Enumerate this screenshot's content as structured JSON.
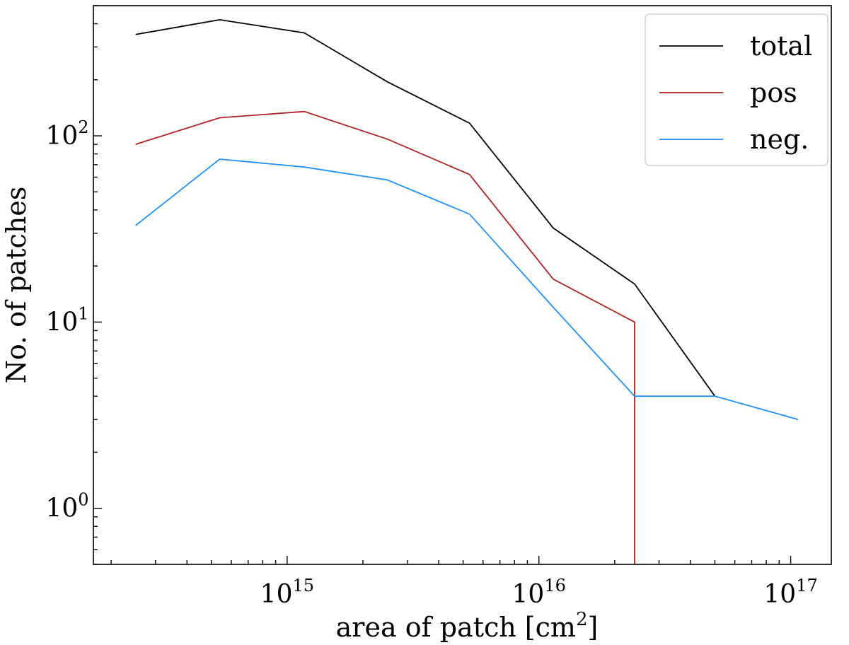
{
  "chart_data": {
    "type": "line",
    "scale": {
      "x": "log",
      "y": "log"
    },
    "xlabel": "area of patch [cm",
    "xlabel_sup": "2",
    "xlabel_close": "]",
    "ylabel": "No. of patches",
    "xlim": [
      170000000000000.0,
      1.45e+17
    ],
    "ylim": [
      0.5,
      500
    ],
    "x_ticks": [
      {
        "base": "10",
        "exp": "15",
        "value": 1000000000000000.0
      },
      {
        "base": "10",
        "exp": "16",
        "value": 1e+16
      },
      {
        "base": "10",
        "exp": "17",
        "value": 1e+17
      }
    ],
    "y_ticks": [
      {
        "base": "10",
        "exp": "0",
        "value": 1
      },
      {
        "base": "10",
        "exp": "1",
        "value": 10
      },
      {
        "base": "10",
        "exp": "2",
        "value": 100
      }
    ],
    "legend_position": "top-right",
    "series": [
      {
        "name": "total",
        "color": "#000000",
        "points": [
          [
            250000000000000.0,
            350
          ],
          [
            540000000000000.0,
            420
          ],
          [
            1170000000000000.0,
            357
          ],
          [
            2500000000000000.0,
            195
          ],
          [
            5300000000000000.0,
            117
          ],
          [
            1.14e+16,
            32
          ],
          [
            2.4e+16,
            16
          ],
          [
            5e+16,
            4
          ]
        ]
      },
      {
        "name": "pos",
        "color": "#b22222",
        "points": [
          [
            250000000000000.0,
            90
          ],
          [
            540000000000000.0,
            125
          ],
          [
            1170000000000000.0,
            135
          ],
          [
            2500000000000000.0,
            96
          ],
          [
            5300000000000000.0,
            62
          ],
          [
            1.14e+16,
            17
          ],
          [
            2.4e+16,
            10
          ],
          [
            2.4e+16,
            0.5
          ]
        ]
      },
      {
        "name": "neg.",
        "color": "#1e90ff",
        "points": [
          [
            250000000000000.0,
            33
          ],
          [
            540000000000000.0,
            75
          ],
          [
            1170000000000000.0,
            68
          ],
          [
            2500000000000000.0,
            58
          ],
          [
            5300000000000000.0,
            38
          ],
          [
            1.14e+16,
            12
          ],
          [
            2.4e+16,
            4
          ],
          [
            5e+16,
            4
          ],
          [
            1.07e+17,
            3
          ]
        ]
      }
    ]
  }
}
